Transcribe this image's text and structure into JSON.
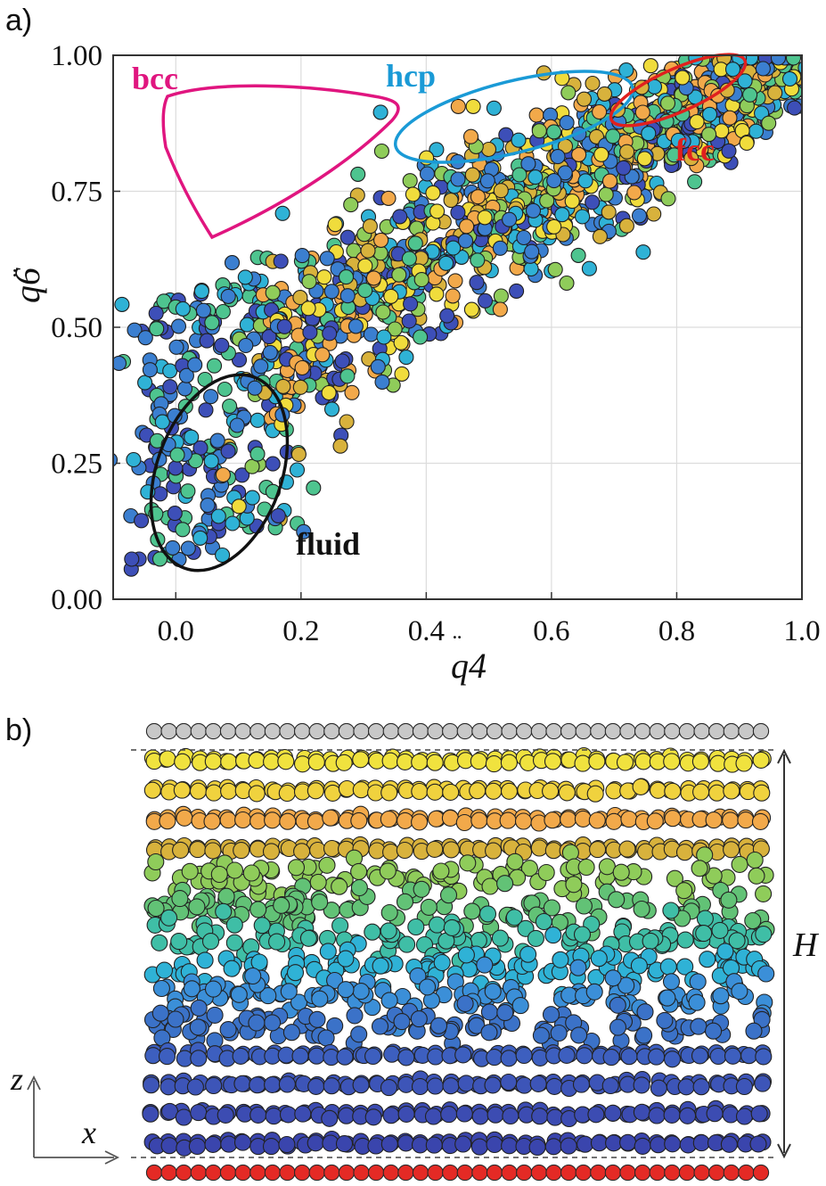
{
  "panel_a_label": "a)",
  "panel_b_label": "b)",
  "chart_data": [
    {
      "type": "scatter",
      "title": "",
      "xlabel": "q4",
      "ylabel": "q6",
      "xlim": [
        -0.1,
        1.0
      ],
      "ylim": [
        0.0,
        1.0
      ],
      "xticks": [
        "0.0",
        "0.2",
        "0.4",
        "0.6",
        "0.8",
        "1.0"
      ],
      "yticks": [
        "0.00",
        "0.25",
        "0.50",
        "0.75",
        "1.00"
      ],
      "grid": true,
      "color_scale": [
        "#3d4fb8",
        "#3b7fd0",
        "#2fb2d6",
        "#4ec48f",
        "#8fcc5a",
        "#d8b23c",
        "#f2a94a",
        "#f0dc3c"
      ],
      "band_description": "points spread along a band rising from fluid region to fcc corner",
      "series": [
        {
          "name": "particles",
          "x": [
            0.02,
            0.05,
            0.08,
            0.12,
            0.0,
            -0.03,
            0.1,
            0.15,
            0.2,
            0.25,
            0.3,
            0.35,
            0.4,
            0.45,
            0.5,
            0.55,
            0.6,
            0.65,
            0.7,
            0.75,
            0.8,
            0.85,
            0.9,
            0.95,
            0.98
          ],
          "y": [
            0.1,
            0.2,
            0.3,
            0.35,
            0.25,
            0.2,
            0.45,
            0.5,
            0.55,
            0.6,
            0.65,
            0.68,
            0.72,
            0.76,
            0.78,
            0.8,
            0.83,
            0.86,
            0.88,
            0.9,
            0.92,
            0.94,
            0.96,
            0.98,
            0.99
          ]
        }
      ],
      "regions": [
        {
          "name": "bcc",
          "color": "#e0157f"
        },
        {
          "name": "hcp",
          "color": "#1a9ad6"
        },
        {
          "name": "fcc",
          "color": "#e0201e"
        },
        {
          "name": "fluid",
          "color": "#111111"
        }
      ]
    },
    {
      "type": "scatter",
      "title": "",
      "xlabel": "x",
      "ylabel": "z",
      "dimension_label": "H",
      "layers_top_to_bottom": [
        {
          "kind": "wall",
          "color": "#c8c8c8"
        },
        {
          "kind": "crystal",
          "color": "#f0e23e"
        },
        {
          "kind": "crystal",
          "color": "#f0d23e"
        },
        {
          "kind": "crystal",
          "color": "#f2a94a"
        },
        {
          "kind": "crystal",
          "color": "#d8b23c"
        },
        {
          "kind": "fluid",
          "color": "#8fcc5a"
        },
        {
          "kind": "fluid",
          "color": "#62c276"
        },
        {
          "kind": "fluid",
          "color": "#3fbea6"
        },
        {
          "kind": "fluid",
          "color": "#2fb2d6"
        },
        {
          "kind": "fluid",
          "color": "#3b8fd8"
        },
        {
          "kind": "fluid",
          "color": "#3b72c8"
        },
        {
          "kind": "crystal",
          "color": "#3d5fbf"
        },
        {
          "kind": "crystal",
          "color": "#3d55b8"
        },
        {
          "kind": "crystal",
          "color": "#3c4cb2"
        },
        {
          "kind": "crystal",
          "color": "#3a45ad"
        },
        {
          "kind": "wall",
          "color": "#e42a25"
        }
      ]
    }
  ]
}
